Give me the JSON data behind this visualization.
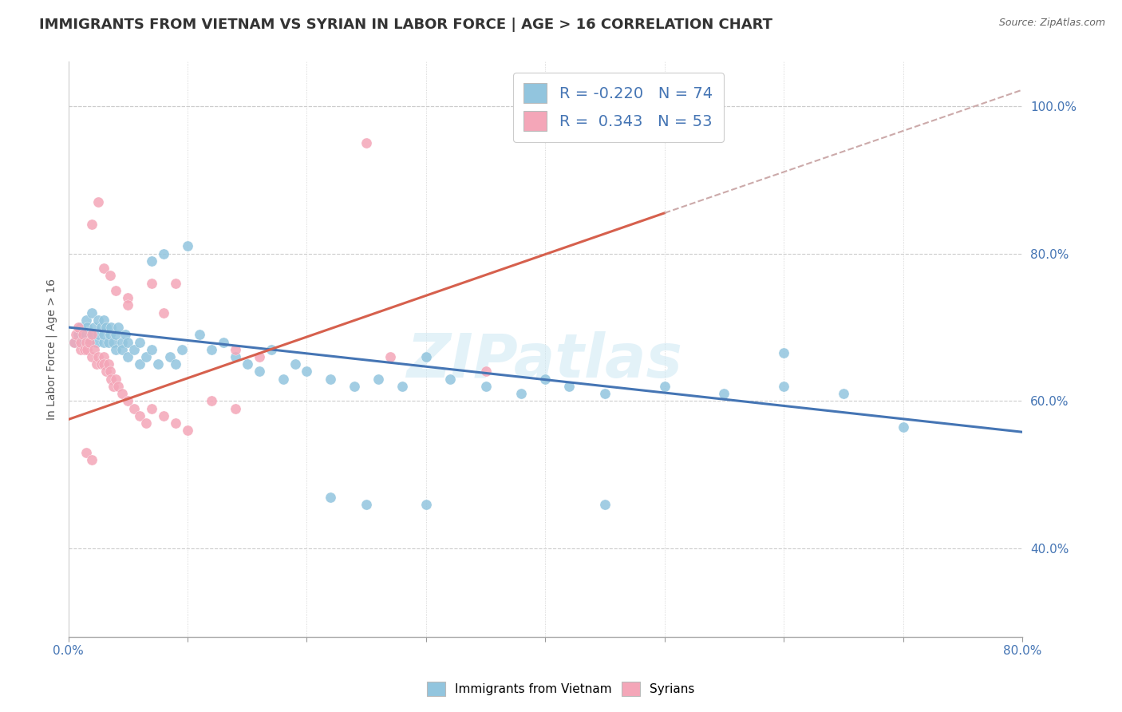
{
  "title": "IMMIGRANTS FROM VIETNAM VS SYRIAN IN LABOR FORCE | AGE > 16 CORRELATION CHART",
  "source": "Source: ZipAtlas.com",
  "ylabel": "In Labor Force | Age > 16",
  "watermark": "ZIPatlas",
  "xlim": [
    0.0,
    0.8
  ],
  "ylim": [
    0.28,
    1.06
  ],
  "xtick_positions": [
    0.0,
    0.1,
    0.2,
    0.3,
    0.4,
    0.5,
    0.6,
    0.7,
    0.8
  ],
  "xticklabels": [
    "0.0%",
    "",
    "",
    "",
    "",
    "",
    "",
    "",
    "80.0%"
  ],
  "yticks_right": [
    0.4,
    0.6,
    0.8,
    1.0
  ],
  "ytick_right_labels": [
    "40.0%",
    "60.0%",
    "80.0%",
    "100.0%"
  ],
  "legend_blue_R": "-0.220",
  "legend_blue_N": "74",
  "legend_pink_R": "0.343",
  "legend_pink_N": "53",
  "blue_color": "#92C5DE",
  "pink_color": "#F4A6B8",
  "trendline_blue_color": "#4575B4",
  "trendline_pink_color": "#D6604D",
  "trendline_dashed_color": "#CCAAAA",
  "title_fontsize": 13,
  "axis_label_fontsize": 10,
  "tick_fontsize": 11,
  "blue_scatter_x": [
    0.005,
    0.008,
    0.01,
    0.012,
    0.015,
    0.015,
    0.016,
    0.018,
    0.02,
    0.02,
    0.022,
    0.024,
    0.025,
    0.025,
    0.028,
    0.03,
    0.03,
    0.03,
    0.032,
    0.034,
    0.035,
    0.036,
    0.038,
    0.04,
    0.04,
    0.042,
    0.045,
    0.045,
    0.048,
    0.05,
    0.05,
    0.055,
    0.06,
    0.06,
    0.065,
    0.07,
    0.07,
    0.075,
    0.08,
    0.085,
    0.09,
    0.095,
    0.1,
    0.11,
    0.12,
    0.13,
    0.14,
    0.15,
    0.16,
    0.17,
    0.18,
    0.19,
    0.2,
    0.22,
    0.24,
    0.26,
    0.28,
    0.3,
    0.32,
    0.35,
    0.38,
    0.4,
    0.42,
    0.45,
    0.5,
    0.55,
    0.6,
    0.65,
    0.7,
    0.22,
    0.25,
    0.3,
    0.45,
    0.6
  ],
  "blue_scatter_y": [
    0.68,
    0.69,
    0.7,
    0.68,
    0.71,
    0.69,
    0.7,
    0.68,
    0.72,
    0.69,
    0.7,
    0.68,
    0.71,
    0.69,
    0.7,
    0.68,
    0.69,
    0.71,
    0.7,
    0.68,
    0.69,
    0.7,
    0.68,
    0.67,
    0.69,
    0.7,
    0.68,
    0.67,
    0.69,
    0.66,
    0.68,
    0.67,
    0.65,
    0.68,
    0.66,
    0.79,
    0.67,
    0.65,
    0.8,
    0.66,
    0.65,
    0.67,
    0.81,
    0.69,
    0.67,
    0.68,
    0.66,
    0.65,
    0.64,
    0.67,
    0.63,
    0.65,
    0.64,
    0.63,
    0.62,
    0.63,
    0.62,
    0.66,
    0.63,
    0.62,
    0.61,
    0.63,
    0.62,
    0.61,
    0.62,
    0.61,
    0.62,
    0.61,
    0.565,
    0.47,
    0.46,
    0.46,
    0.46,
    0.665
  ],
  "pink_scatter_x": [
    0.005,
    0.006,
    0.008,
    0.01,
    0.01,
    0.012,
    0.014,
    0.015,
    0.016,
    0.018,
    0.02,
    0.02,
    0.022,
    0.024,
    0.025,
    0.028,
    0.03,
    0.03,
    0.032,
    0.034,
    0.035,
    0.036,
    0.038,
    0.04,
    0.042,
    0.045,
    0.05,
    0.055,
    0.06,
    0.065,
    0.07,
    0.08,
    0.09,
    0.1,
    0.12,
    0.14,
    0.04,
    0.05,
    0.07,
    0.09,
    0.14,
    0.16,
    0.02,
    0.025,
    0.03,
    0.035,
    0.05,
    0.08,
    0.27,
    0.35,
    0.015,
    0.02,
    0.25
  ],
  "pink_scatter_y": [
    0.68,
    0.69,
    0.7,
    0.67,
    0.68,
    0.69,
    0.67,
    0.68,
    0.67,
    0.68,
    0.69,
    0.66,
    0.67,
    0.65,
    0.66,
    0.65,
    0.66,
    0.65,
    0.64,
    0.65,
    0.64,
    0.63,
    0.62,
    0.63,
    0.62,
    0.61,
    0.6,
    0.59,
    0.58,
    0.57,
    0.59,
    0.58,
    0.57,
    0.56,
    0.6,
    0.59,
    0.75,
    0.74,
    0.76,
    0.76,
    0.67,
    0.66,
    0.84,
    0.87,
    0.78,
    0.77,
    0.73,
    0.72,
    0.66,
    0.64,
    0.53,
    0.52,
    0.95
  ],
  "blue_trend_x": [
    0.0,
    0.8
  ],
  "blue_trend_y": [
    0.7,
    0.558
  ],
  "pink_trend_x": [
    0.0,
    0.5
  ],
  "pink_trend_y": [
    0.575,
    0.855
  ],
  "dashed_trend_x": [
    0.5,
    0.8
  ],
  "dashed_trend_y": [
    0.855,
    1.022
  ]
}
